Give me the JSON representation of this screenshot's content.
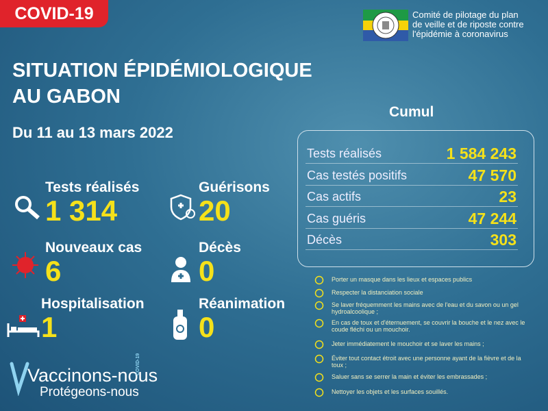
{
  "header": {
    "tag": "COVID-19",
    "org": [
      "Comité de pilotage du plan",
      "de veille et de riposte contre",
      "l'épidémie à coronavirus"
    ],
    "title": [
      "SITUATION ÉPIDÉMIOLOGIQUE",
      "AU GABON"
    ],
    "period": "Du 11 au 13 mars 2022"
  },
  "stats": [
    {
      "label": "Tests réalisés",
      "value": "1 314"
    },
    {
      "label": "Guérisons",
      "value": "20"
    },
    {
      "label": "Nouveaux cas",
      "value": "6"
    },
    {
      "label": "Décès",
      "value": "0"
    },
    {
      "label": "Hospitalisation",
      "value": "1"
    },
    {
      "label": "Réanimation",
      "value": "0"
    }
  ],
  "cumul": {
    "title": "Cumul",
    "rows": [
      [
        "Tests réalisés",
        "1 584 243"
      ],
      [
        "Cas testés positifs",
        "47 570"
      ],
      [
        "Cas actifs",
        "23"
      ],
      [
        "Cas guéris",
        "47 244"
      ],
      [
        "Décès",
        "303"
      ]
    ]
  },
  "measures": [
    "Porter un masque dans les lieux et espaces publics",
    "Respecter la distanciation sociale",
    "Se laver fréquemment les mains avec de l'eau et du savon ou un gel hydroalcoolique ;",
    "En cas de toux et d'éternuement, se couvrir la bouche et le nez avec le coude fléchi ou un mouchoir.",
    "Jeter immédiatement le mouchoir et se laver les mains ;",
    "Éviter tout contact étroit avec une personne ayant de la fièvre et de la toux ;",
    "Saluer sans se serrer la main et éviter les embrassades ;",
    "Nettoyer les objets et les surfaces souillés."
  ],
  "footer": {
    "line1": "Vaccinons-nous",
    "line2": "Protégeons-nous",
    "badge": "COVID-19"
  }
}
